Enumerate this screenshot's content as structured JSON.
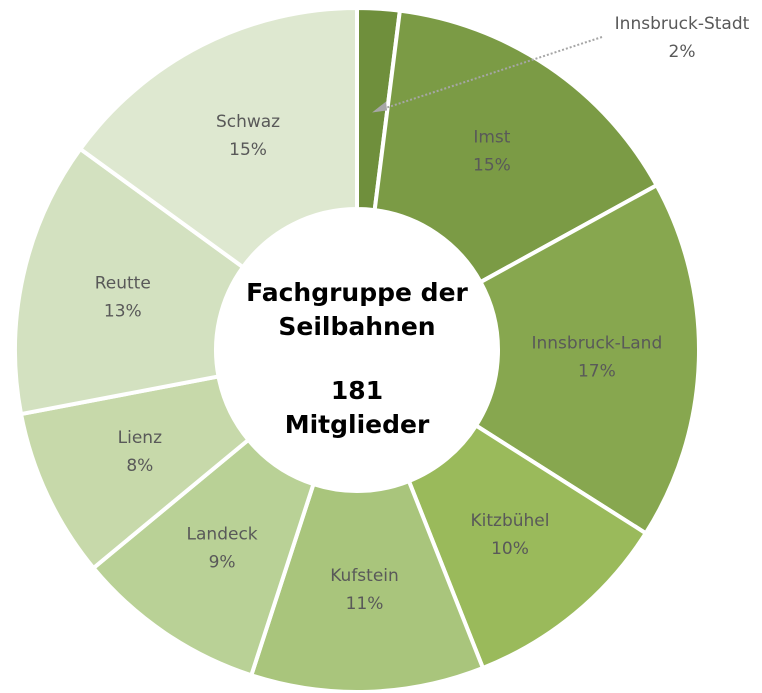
{
  "chart_data": {
    "type": "donut",
    "categories": [
      "Innsbruck-Stadt",
      "Imst",
      "Innsbruck-Land",
      "Kitzbühel",
      "Kufstein",
      "Landeck",
      "Lienz",
      "Reutte",
      "Schwaz"
    ],
    "values": [
      2,
      15,
      17,
      10,
      11,
      9,
      8,
      13,
      15
    ],
    "value_labels": [
      "2%",
      "15%",
      "17%",
      "10%",
      "11%",
      "9%",
      "8%",
      "13%",
      "15%"
    ],
    "colors": [
      "#6f8f3c",
      "#7b9b45",
      "#87a74f",
      "#9aba5b",
      "#a9c57c",
      "#b9d196",
      "#c7d9aa",
      "#d3e1c0",
      "#dee8d0"
    ],
    "center_lines": [
      "Fachgruppe der",
      "Seilbahnen"
    ],
    "total": 181,
    "total_label": "Mitglieder"
  }
}
